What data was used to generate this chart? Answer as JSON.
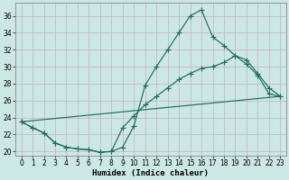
{
  "xlabel": "Humidex (Indice chaleur)",
  "bg_color": "#cce8e4",
  "grid_color": "#c8b8c8",
  "line_color": "#1f6b60",
  "ylim": [
    19.5,
    37.5
  ],
  "xlim": [
    -0.5,
    23.5
  ],
  "yticks": [
    20,
    22,
    24,
    26,
    28,
    30,
    32,
    34,
    36
  ],
  "xticks": [
    0,
    1,
    2,
    3,
    4,
    5,
    6,
    7,
    8,
    9,
    10,
    11,
    12,
    13,
    14,
    15,
    16,
    17,
    18,
    19,
    20,
    21,
    22,
    23
  ],
  "line1_x": [
    0,
    1,
    2,
    3,
    4,
    5,
    6,
    7,
    8,
    9,
    10,
    11,
    12,
    13,
    14,
    15,
    16,
    17,
    18,
    19,
    20,
    21,
    22,
    23
  ],
  "line1_y": [
    23.5,
    22.8,
    22.2,
    21.0,
    20.5,
    20.3,
    20.2,
    19.9,
    20.0,
    20.5,
    23.0,
    27.8,
    30.0,
    32.0,
    34.0,
    36.0,
    36.7,
    33.5,
    32.5,
    31.3,
    30.3,
    29.0,
    26.8,
    26.5
  ],
  "line2_x": [
    0,
    1,
    2,
    3,
    4,
    5,
    6,
    7,
    8,
    9,
    10,
    11,
    12,
    13,
    14,
    15,
    16,
    17,
    18,
    19,
    20,
    21,
    22,
    23
  ],
  "line2_y": [
    23.5,
    22.8,
    22.2,
    21.0,
    20.5,
    20.3,
    20.2,
    19.9,
    20.0,
    22.8,
    24.2,
    25.5,
    26.5,
    27.5,
    28.5,
    29.2,
    29.8,
    30.0,
    30.5,
    31.3,
    30.8,
    29.2,
    27.5,
    26.5
  ],
  "line3_x": [
    0,
    23
  ],
  "line3_y": [
    23.5,
    26.5
  ]
}
